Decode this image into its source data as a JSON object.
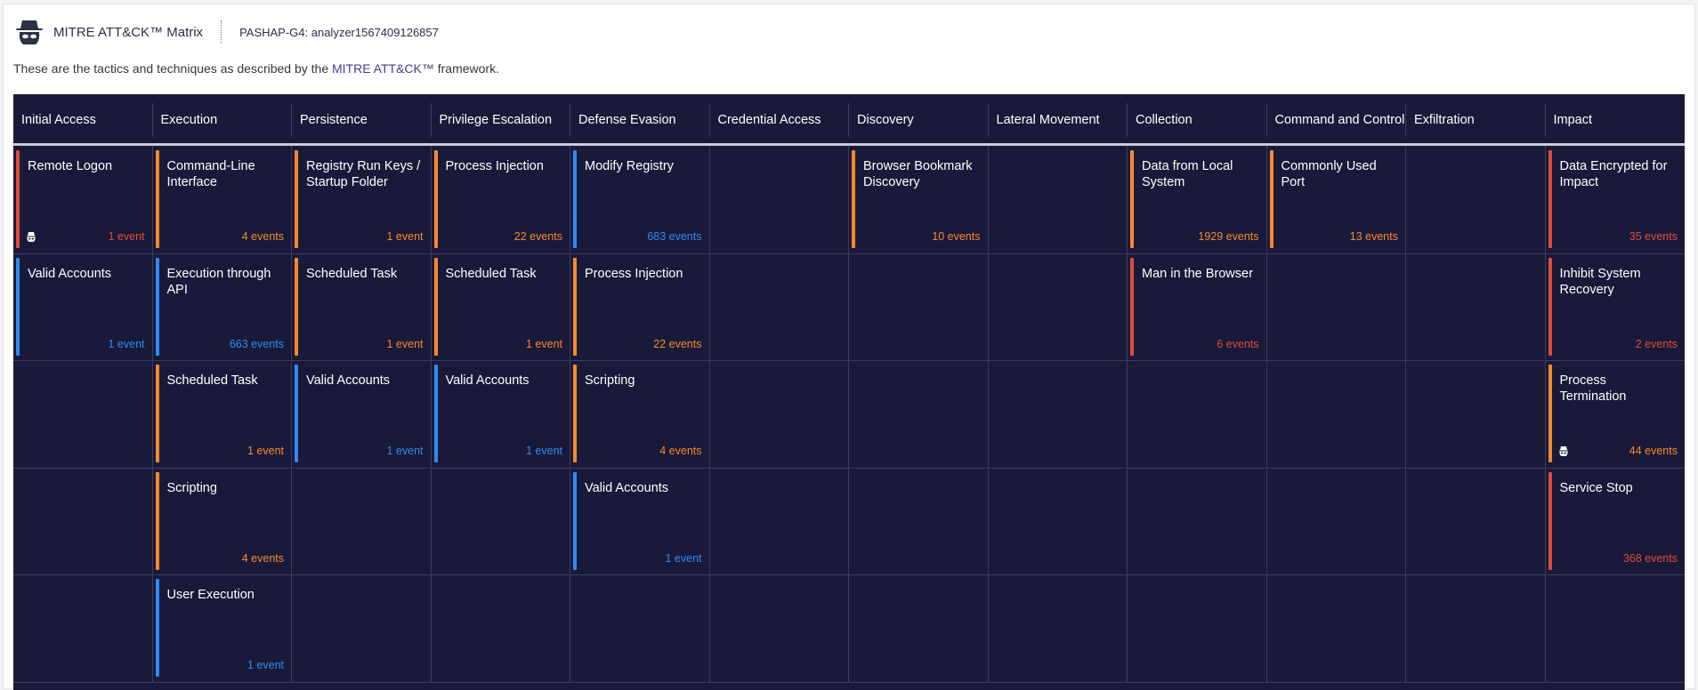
{
  "header": {
    "title": "MITRE ATT&CK™ Matrix",
    "subtitle": "PASHAP-G4: analyzer1567409126857",
    "icon": "spy-icon"
  },
  "description": {
    "before": "These are the tactics and techniques as described by the ",
    "link": "MITRE ATT&CK™",
    "after": " framework."
  },
  "colors": {
    "red": "#e24a3b",
    "orange": "#f7892a",
    "blue": "#2e8bf2",
    "background": "#191a39"
  },
  "tactics": [
    {
      "name": "Initial Access",
      "techniques": [
        {
          "name": "Remote Logon",
          "count": "1 event",
          "severity": "red",
          "icon": "spy-icon"
        },
        {
          "name": "Valid Accounts",
          "count": "1 event",
          "severity": "blue"
        }
      ]
    },
    {
      "name": "Execution",
      "techniques": [
        {
          "name": "Command-Line Interface",
          "count": "4 events",
          "severity": "orange"
        },
        {
          "name": "Execution through API",
          "count": "663 events",
          "severity": "blue"
        },
        {
          "name": "Scheduled Task",
          "count": "1 event",
          "severity": "orange"
        },
        {
          "name": "Scripting",
          "count": "4 events",
          "severity": "orange"
        },
        {
          "name": "User Execution",
          "count": "1 event",
          "severity": "blue"
        }
      ]
    },
    {
      "name": "Persistence",
      "techniques": [
        {
          "name": "Registry Run Keys / Startup Folder",
          "count": "1 event",
          "severity": "orange"
        },
        {
          "name": "Scheduled Task",
          "count": "1 event",
          "severity": "orange"
        },
        {
          "name": "Valid Accounts",
          "count": "1 event",
          "severity": "blue"
        }
      ]
    },
    {
      "name": "Privilege Escalation",
      "techniques": [
        {
          "name": "Process Injection",
          "count": "22 events",
          "severity": "orange"
        },
        {
          "name": "Scheduled Task",
          "count": "1 event",
          "severity": "orange"
        },
        {
          "name": "Valid Accounts",
          "count": "1 event",
          "severity": "blue"
        }
      ]
    },
    {
      "name": "Defense Evasion",
      "techniques": [
        {
          "name": "Modify Registry",
          "count": "683 events",
          "severity": "blue"
        },
        {
          "name": "Process Injection",
          "count": "22 events",
          "severity": "orange"
        },
        {
          "name": "Scripting",
          "count": "4 events",
          "severity": "orange"
        },
        {
          "name": "Valid Accounts",
          "count": "1 event",
          "severity": "blue"
        }
      ]
    },
    {
      "name": "Credential Access",
      "techniques": []
    },
    {
      "name": "Discovery",
      "techniques": [
        {
          "name": "Browser Bookmark Discovery",
          "count": "10 events",
          "severity": "orange"
        }
      ]
    },
    {
      "name": "Lateral Movement",
      "techniques": []
    },
    {
      "name": "Collection",
      "techniques": [
        {
          "name": "Data from Local System",
          "count": "1929 events",
          "severity": "orange"
        },
        {
          "name": "Man in the Browser",
          "count": "6 events",
          "severity": "red"
        }
      ]
    },
    {
      "name": "Command and Control",
      "techniques": [
        {
          "name": "Commonly Used Port",
          "count": "13 events",
          "severity": "orange"
        }
      ]
    },
    {
      "name": "Exfiltration",
      "techniques": []
    },
    {
      "name": "Impact",
      "techniques": [
        {
          "name": "Data Encrypted for Impact",
          "count": "35 events",
          "severity": "red"
        },
        {
          "name": "Inhibit System Recovery",
          "count": "2 events",
          "severity": "red"
        },
        {
          "name": "Process Termination",
          "count": "44 events",
          "severity": "orange",
          "icon": "spy-icon"
        },
        {
          "name": "Service Stop",
          "count": "368 events",
          "severity": "red"
        }
      ]
    }
  ]
}
